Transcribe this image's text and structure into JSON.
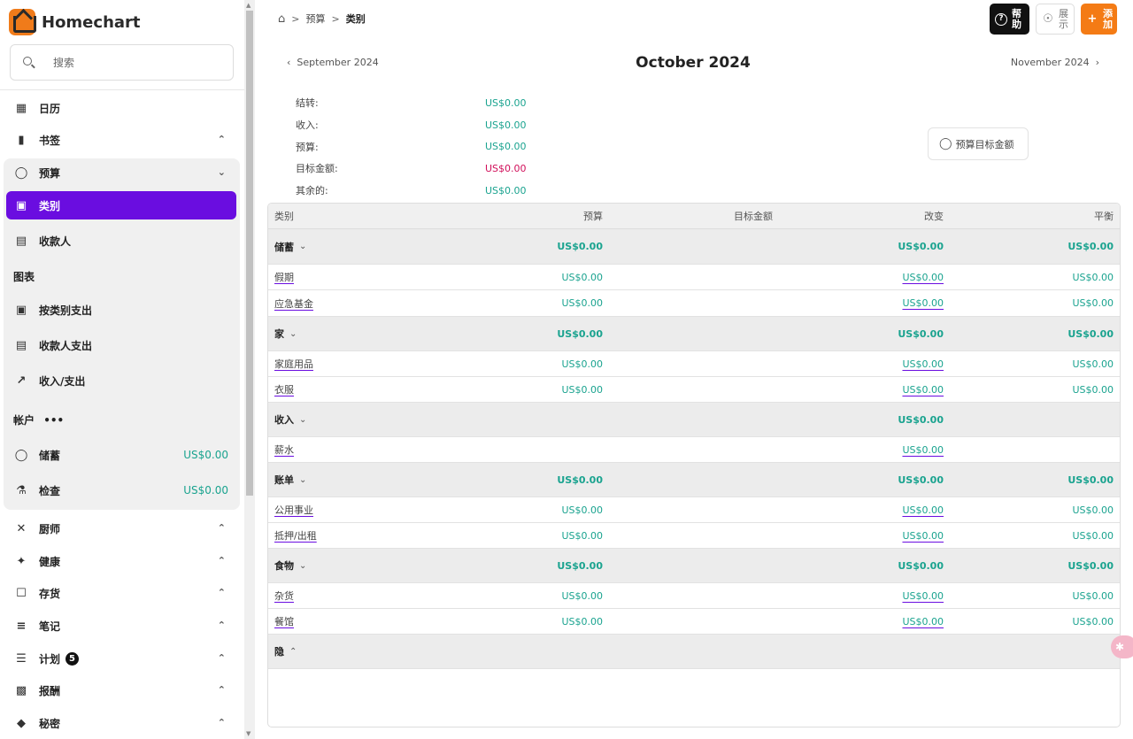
{
  "app": {
    "name": "Homechart"
  },
  "search": {
    "placeholder": "搜索"
  },
  "sidebar": {
    "calendar": "日历",
    "bookmarks": "书签",
    "budget": "预算",
    "categories": "类别",
    "payees": "收款人",
    "charts_label": "图表",
    "chart_by_category": "按类别支出",
    "chart_by_payee": "收款人支出",
    "chart_income_expense": "收入/支出",
    "accounts_label": "帐户",
    "accounts_more": "•••",
    "accounts": [
      {
        "name": "储蓄",
        "amount": "US$0.00"
      },
      {
        "name": "检查",
        "amount": "US$0.00"
      }
    ],
    "cook": "厨师",
    "health": "健康",
    "inventory": "存货",
    "notes": "笔记",
    "plan": "计划",
    "plan_badge": "5",
    "rewards": "报酬",
    "secrets": "秘密"
  },
  "breadcrumb": {
    "level1": "预算",
    "level2": "类别"
  },
  "header_buttons": {
    "help": "帮助",
    "show": "展示",
    "add": "添加"
  },
  "month_nav": {
    "prev": "September 2024",
    "current": "October 2024",
    "next": "November 2024"
  },
  "summary": [
    {
      "label": "结转:",
      "value": "US$0.00"
    },
    {
      "label": "收入:",
      "value": "US$0.00"
    },
    {
      "label": "预算:",
      "value": "US$0.00"
    },
    {
      "label": "目标金额:",
      "value": "US$0.00"
    },
    {
      "label": "其余的:",
      "value": "US$0.00"
    }
  ],
  "target_button": "预算目标金额",
  "table": {
    "headers": [
      "类别",
      "预算",
      "目标金额",
      "改变",
      "平衡"
    ],
    "rows": [
      {
        "type": "group",
        "name": "储蓄",
        "budget": "US$0.00",
        "target": "",
        "change": "US$0.00",
        "balance": "US$0.00"
      },
      {
        "type": "item",
        "name": "假期",
        "budget": "US$0.00",
        "target": "",
        "change": "US$0.00",
        "balance": "US$0.00"
      },
      {
        "type": "item",
        "name": "应急基金",
        "budget": "US$0.00",
        "target": "",
        "change": "US$0.00",
        "balance": "US$0.00"
      },
      {
        "type": "group",
        "name": "家",
        "budget": "US$0.00",
        "target": "",
        "change": "US$0.00",
        "balance": "US$0.00"
      },
      {
        "type": "item",
        "name": "家庭用品",
        "budget": "US$0.00",
        "target": "",
        "change": "US$0.00",
        "balance": "US$0.00"
      },
      {
        "type": "item",
        "name": "衣服",
        "budget": "US$0.00",
        "target": "",
        "change": "US$0.00",
        "balance": "US$0.00"
      },
      {
        "type": "group",
        "name": "收入",
        "budget": "",
        "target": "",
        "change": "US$0.00",
        "balance": ""
      },
      {
        "type": "item",
        "name": "薪水",
        "budget": "",
        "target": "",
        "change": "US$0.00",
        "balance": ""
      },
      {
        "type": "group",
        "name": "账单",
        "budget": "US$0.00",
        "target": "",
        "change": "US$0.00",
        "balance": "US$0.00"
      },
      {
        "type": "item",
        "name": "公用事业",
        "budget": "US$0.00",
        "target": "",
        "change": "US$0.00",
        "balance": "US$0.00"
      },
      {
        "type": "item",
        "name": "抵押/出租",
        "budget": "US$0.00",
        "target": "",
        "change": "US$0.00",
        "balance": "US$0.00"
      },
      {
        "type": "group",
        "name": "食物",
        "budget": "US$0.00",
        "target": "",
        "change": "US$0.00",
        "balance": "US$0.00"
      },
      {
        "type": "item",
        "name": "杂货",
        "budget": "US$0.00",
        "target": "",
        "change": "US$0.00",
        "balance": "US$0.00"
      },
      {
        "type": "item",
        "name": "餐馆",
        "budget": "US$0.00",
        "target": "",
        "change": "US$0.00",
        "balance": "US$0.00"
      },
      {
        "type": "hidden",
        "name": "隐",
        "budget": "",
        "target": "",
        "change": "",
        "balance": ""
      }
    ]
  },
  "colors": {
    "accent": "#6a0de0",
    "positive": "#1aa38f",
    "negative": "#d10f5a",
    "add": "#f47b15"
  }
}
